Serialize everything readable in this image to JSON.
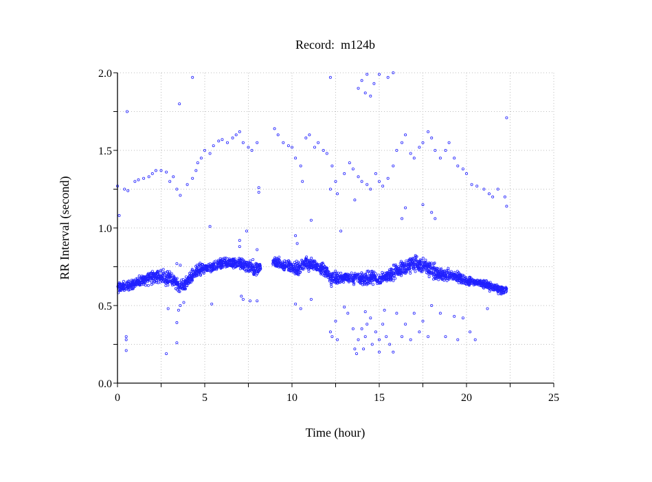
{
  "chart_data": {
    "type": "scatter",
    "title": "Record:  m124b",
    "xlabel": "Time (hour)",
    "ylabel": "RR Interval (second)",
    "xlim": [
      0,
      25
    ],
    "ylim": [
      0,
      2.0
    ],
    "x_ticks": [
      "0",
      "5",
      "10",
      "15",
      "20",
      "25"
    ],
    "x_tick_values": [
      0,
      5,
      10,
      15,
      20,
      25
    ],
    "x_minor_step": 2.5,
    "y_ticks": [
      "0.0",
      "0.5",
      "1.0",
      "1.5",
      "2.0"
    ],
    "y_tick_values": [
      0,
      0.5,
      1.0,
      1.5,
      2.0
    ],
    "y_minor_step": 0.25,
    "grid": true,
    "grid_style": "dotted",
    "marker": "open-circle",
    "point_color": "#2020ff",
    "dense_band": {
      "description_units": "hour, low RR (s), high RR (s)",
      "segments": [
        [
          [
            0,
            0.57,
            0.66
          ],
          [
            0.5,
            0.58,
            0.67
          ],
          [
            1,
            0.6,
            0.68
          ],
          [
            1.5,
            0.62,
            0.72
          ],
          [
            2,
            0.62,
            0.75
          ],
          [
            2.5,
            0.62,
            0.75
          ],
          [
            3,
            0.62,
            0.74
          ],
          [
            3.3,
            0.6,
            0.7
          ],
          [
            3.6,
            0.57,
            0.68
          ],
          [
            4,
            0.6,
            0.7
          ],
          [
            4.5,
            0.66,
            0.78
          ],
          [
            5,
            0.7,
            0.78
          ],
          [
            5.5,
            0.7,
            0.79
          ],
          [
            6,
            0.72,
            0.82
          ],
          [
            6.5,
            0.72,
            0.83
          ],
          [
            7,
            0.72,
            0.82
          ],
          [
            7.5,
            0.7,
            0.8
          ],
          [
            8,
            0.65,
            0.81
          ],
          [
            8.2,
            0.7,
            0.81
          ]
        ],
        [
          [
            8.9,
            0.73,
            0.82
          ],
          [
            9,
            0.73,
            0.84
          ],
          [
            9.5,
            0.72,
            0.8
          ],
          [
            10,
            0.7,
            0.8
          ],
          [
            10.3,
            0.65,
            0.82
          ],
          [
            10.7,
            0.72,
            0.84
          ],
          [
            11,
            0.7,
            0.83
          ],
          [
            11.5,
            0.7,
            0.8
          ],
          [
            12,
            0.65,
            0.78
          ],
          [
            12.3,
            0.6,
            0.75
          ],
          [
            12.7,
            0.62,
            0.72
          ],
          [
            13,
            0.65,
            0.72
          ],
          [
            13.5,
            0.62,
            0.74
          ],
          [
            14,
            0.62,
            0.72
          ],
          [
            14.5,
            0.62,
            0.74
          ],
          [
            15,
            0.62,
            0.72
          ],
          [
            15.5,
            0.64,
            0.74
          ],
          [
            16,
            0.66,
            0.8
          ],
          [
            16.5,
            0.68,
            0.82
          ],
          [
            17,
            0.7,
            0.85
          ],
          [
            17.5,
            0.68,
            0.82
          ],
          [
            18,
            0.66,
            0.8
          ],
          [
            18.5,
            0.64,
            0.75
          ],
          [
            19,
            0.64,
            0.75
          ],
          [
            19.5,
            0.64,
            0.73
          ],
          [
            20,
            0.62,
            0.7
          ],
          [
            20.5,
            0.62,
            0.68
          ],
          [
            21,
            0.6,
            0.68
          ],
          [
            21.5,
            0.58,
            0.66
          ],
          [
            22,
            0.56,
            0.64
          ],
          [
            22.3,
            0.57,
            0.63
          ]
        ]
      ]
    },
    "points": [
      [
        0,
        1.27
      ],
      [
        0.1,
        1.08
      ],
      [
        0.4,
        1.25
      ],
      [
        0.6,
        1.24
      ],
      [
        0.55,
        1.75
      ],
      [
        1,
        1.3
      ],
      [
        1.2,
        1.31
      ],
      [
        1.5,
        1.32
      ],
      [
        1.8,
        1.33
      ],
      [
        2,
        1.35
      ],
      [
        2.2,
        1.37
      ],
      [
        2.5,
        1.37
      ],
      [
        2.8,
        1.36
      ],
      [
        3,
        1.3
      ],
      [
        3.2,
        1.33
      ],
      [
        3.4,
        1.25
      ],
      [
        3.6,
        1.21
      ],
      [
        3.55,
        1.8
      ],
      [
        4.3,
        1.97
      ],
      [
        4,
        1.28
      ],
      [
        4.3,
        1.32
      ],
      [
        4.5,
        1.37
      ],
      [
        4.6,
        1.42
      ],
      [
        4.8,
        1.45
      ],
      [
        5,
        1.5
      ],
      [
        5.3,
        1.48
      ],
      [
        5.5,
        1.53
      ],
      [
        5.8,
        1.56
      ],
      [
        6,
        1.57
      ],
      [
        6.3,
        1.55
      ],
      [
        6.6,
        1.58
      ],
      [
        6.8,
        1.6
      ],
      [
        7,
        1.62
      ],
      [
        7.2,
        1.55
      ],
      [
        7.5,
        1.52
      ],
      [
        7.7,
        1.5
      ],
      [
        8,
        1.55
      ],
      [
        8.1,
        1.26
      ],
      [
        8.1,
        1.23
      ],
      [
        9,
        1.64
      ],
      [
        9.2,
        1.6
      ],
      [
        9.5,
        1.55
      ],
      [
        9.8,
        1.53
      ],
      [
        10,
        1.52
      ],
      [
        10.2,
        1.45
      ],
      [
        10.5,
        1.4
      ],
      [
        10.6,
        1.3
      ],
      [
        10.8,
        1.58
      ],
      [
        11,
        1.6
      ],
      [
        11.3,
        1.52
      ],
      [
        11.5,
        1.55
      ],
      [
        11.8,
        1.5
      ],
      [
        12,
        1.48
      ],
      [
        12.3,
        1.4
      ],
      [
        12.5,
        1.3
      ],
      [
        12.2,
        1.25
      ],
      [
        12.6,
        1.22
      ],
      [
        13,
        1.35
      ],
      [
        13.3,
        1.42
      ],
      [
        13.5,
        1.38
      ],
      [
        13.6,
        1.18
      ],
      [
        13.8,
        1.33
      ],
      [
        14,
        1.3
      ],
      [
        14.3,
        1.28
      ],
      [
        14.5,
        1.25
      ],
      [
        14.8,
        1.35
      ],
      [
        15,
        1.3
      ],
      [
        15.2,
        1.27
      ],
      [
        15.5,
        1.32
      ],
      [
        15.8,
        1.4
      ],
      [
        16,
        1.5
      ],
      [
        16.3,
        1.55
      ],
      [
        16.5,
        1.6
      ],
      [
        16.8,
        1.48
      ],
      [
        17,
        1.45
      ],
      [
        17.3,
        1.52
      ],
      [
        17.5,
        1.55
      ],
      [
        17.8,
        1.62
      ],
      [
        18,
        1.58
      ],
      [
        18.2,
        1.5
      ],
      [
        18.5,
        1.45
      ],
      [
        18.8,
        1.5
      ],
      [
        19,
        1.55
      ],
      [
        19.3,
        1.45
      ],
      [
        19.5,
        1.4
      ],
      [
        19.8,
        1.38
      ],
      [
        20,
        1.35
      ],
      [
        20.3,
        1.28
      ],
      [
        20.6,
        1.27
      ],
      [
        21,
        1.25
      ],
      [
        21.3,
        1.22
      ],
      [
        21.5,
        1.2
      ],
      [
        21.8,
        1.25
      ],
      [
        22.2,
        1.2
      ],
      [
        22.3,
        1.14
      ],
      [
        22.3,
        1.71
      ],
      [
        12.2,
        1.97
      ],
      [
        13.8,
        1.9
      ],
      [
        14,
        1.95
      ],
      [
        14.2,
        1.87
      ],
      [
        14.3,
        1.99
      ],
      [
        14.5,
        1.85
      ],
      [
        14.7,
        1.93
      ],
      [
        15,
        1.99
      ],
      [
        15.5,
        1.97
      ],
      [
        15.8,
        2.0
      ],
      [
        5.3,
        1.01
      ],
      [
        11.1,
        1.05
      ],
      [
        12.8,
        0.98
      ],
      [
        16.5,
        1.13
      ],
      [
        16.3,
        1.06
      ],
      [
        17.5,
        1.15
      ],
      [
        18,
        1.1
      ],
      [
        18.2,
        1.06
      ],
      [
        7.4,
        0.98
      ],
      [
        7.0,
        0.92
      ],
      [
        10.2,
        0.95
      ],
      [
        10.3,
        0.9
      ],
      [
        7.0,
        0.88
      ],
      [
        8.0,
        0.86
      ],
      [
        3.4,
        0.77
      ],
      [
        3.6,
        0.76
      ],
      [
        0.5,
        0.3
      ],
      [
        0.5,
        0.21
      ],
      [
        0.5,
        0.28
      ],
      [
        2.8,
        0.19
      ],
      [
        2.9,
        0.48
      ],
      [
        3.4,
        0.26
      ],
      [
        3.4,
        0.39
      ],
      [
        3.5,
        0.47
      ],
      [
        3.6,
        0.5
      ],
      [
        3.8,
        0.52
      ],
      [
        5.4,
        0.51
      ],
      [
        7.1,
        0.56
      ],
      [
        7.2,
        0.54
      ],
      [
        8.0,
        0.53
      ],
      [
        7.6,
        0.53
      ],
      [
        10.2,
        0.51
      ],
      [
        10.5,
        0.48
      ],
      [
        11.1,
        0.54
      ],
      [
        12.2,
        0.33
      ],
      [
        12.3,
        0.3
      ],
      [
        12.5,
        0.4
      ],
      [
        12.6,
        0.28
      ],
      [
        13,
        0.49
      ],
      [
        13.2,
        0.45
      ],
      [
        13.5,
        0.35
      ],
      [
        13.6,
        0.22
      ],
      [
        13.7,
        0.19
      ],
      [
        13.8,
        0.28
      ],
      [
        14,
        0.35
      ],
      [
        14.1,
        0.22
      ],
      [
        14.2,
        0.3
      ],
      [
        14.2,
        0.46
      ],
      [
        14.3,
        0.38
      ],
      [
        14.5,
        0.42
      ],
      [
        14.6,
        0.25
      ],
      [
        14.8,
        0.33
      ],
      [
        15,
        0.28
      ],
      [
        15,
        0.2
      ],
      [
        15.2,
        0.38
      ],
      [
        15.3,
        0.47
      ],
      [
        15.4,
        0.3
      ],
      [
        15.6,
        0.25
      ],
      [
        15.8,
        0.2
      ],
      [
        16,
        0.45
      ],
      [
        16.3,
        0.3
      ],
      [
        16.5,
        0.38
      ],
      [
        16.8,
        0.28
      ],
      [
        17,
        0.45
      ],
      [
        17.3,
        0.33
      ],
      [
        17.5,
        0.4
      ],
      [
        17.8,
        0.3
      ],
      [
        18,
        0.5
      ],
      [
        18.5,
        0.45
      ],
      [
        18.8,
        0.3
      ],
      [
        19.3,
        0.43
      ],
      [
        19.5,
        0.28
      ],
      [
        19.8,
        0.42
      ],
      [
        20.2,
        0.33
      ],
      [
        20.5,
        0.28
      ],
      [
        21.2,
        0.48
      ]
    ]
  }
}
